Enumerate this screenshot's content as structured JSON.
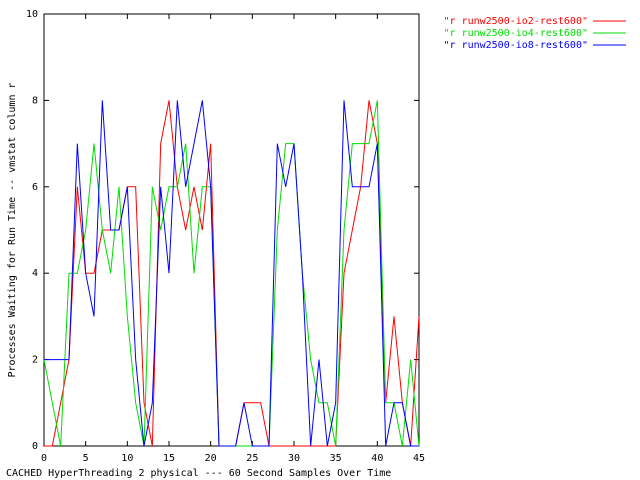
{
  "chart_data": {
    "type": "line",
    "ylabel": "Processes Waiting for Run Time -- vmstat column r",
    "xlabel": "CACHED HyperThreading 2 physical --- 60 Second Samples Over Time",
    "x": [
      0,
      1,
      2,
      3,
      4,
      5,
      6,
      7,
      8,
      9,
      10,
      11,
      12,
      13,
      14,
      15,
      16,
      17,
      18,
      19,
      20,
      21,
      22,
      23,
      24,
      25,
      26,
      27,
      28,
      29,
      30,
      31,
      32,
      33,
      34,
      35,
      36,
      37,
      38,
      39,
      40,
      41,
      42,
      43,
      44,
      45
    ],
    "series": [
      {
        "name": "\"r runw2500-io2-rest600\"",
        "color": "#ff0000",
        "values": [
          0,
          0,
          1,
          2,
          6,
          4,
          4,
          5,
          5,
          5,
          6,
          6,
          1,
          0,
          7,
          8,
          6,
          5,
          6,
          5,
          7,
          0,
          0,
          0,
          1,
          1,
          1,
          0,
          0,
          0,
          0,
          0,
          0,
          0,
          0,
          0,
          4,
          5,
          6,
          8,
          7,
          1,
          3,
          1,
          0,
          3
        ]
      },
      {
        "name": "\"r runw2500-io4-rest600\"",
        "color": "#00dd00",
        "values": [
          2,
          1,
          0,
          4,
          4,
          5,
          7,
          5,
          4,
          6,
          3,
          1,
          0,
          6,
          5,
          6,
          6,
          7,
          4,
          6,
          6,
          0,
          0,
          0,
          0,
          0,
          0,
          0,
          5,
          7,
          7,
          4,
          2,
          1,
          1,
          0,
          5,
          7,
          7,
          7,
          8,
          1,
          1,
          0,
          2,
          0
        ]
      },
      {
        "name": "\"r runw2500-io8-rest600\"",
        "color": "#0000ff",
        "values": [
          2,
          2,
          2,
          2,
          7,
          4,
          3,
          8,
          5,
          5,
          6,
          2,
          0,
          1,
          6,
          4,
          8,
          6,
          7,
          8,
          6,
          0,
          0,
          0,
          1,
          0,
          0,
          0,
          7,
          6,
          7,
          4,
          0,
          2,
          0,
          1,
          8,
          6,
          6,
          6,
          7,
          0,
          1,
          1,
          0,
          0
        ]
      }
    ],
    "xlim": [
      0,
      45
    ],
    "xticks": [
      0,
      5,
      10,
      15,
      20,
      25,
      30,
      35,
      40,
      45
    ],
    "ylim": [
      0,
      10
    ],
    "yticks": [
      0,
      2,
      4,
      6,
      8,
      10
    ],
    "grid": false,
    "legend": "top-right"
  }
}
